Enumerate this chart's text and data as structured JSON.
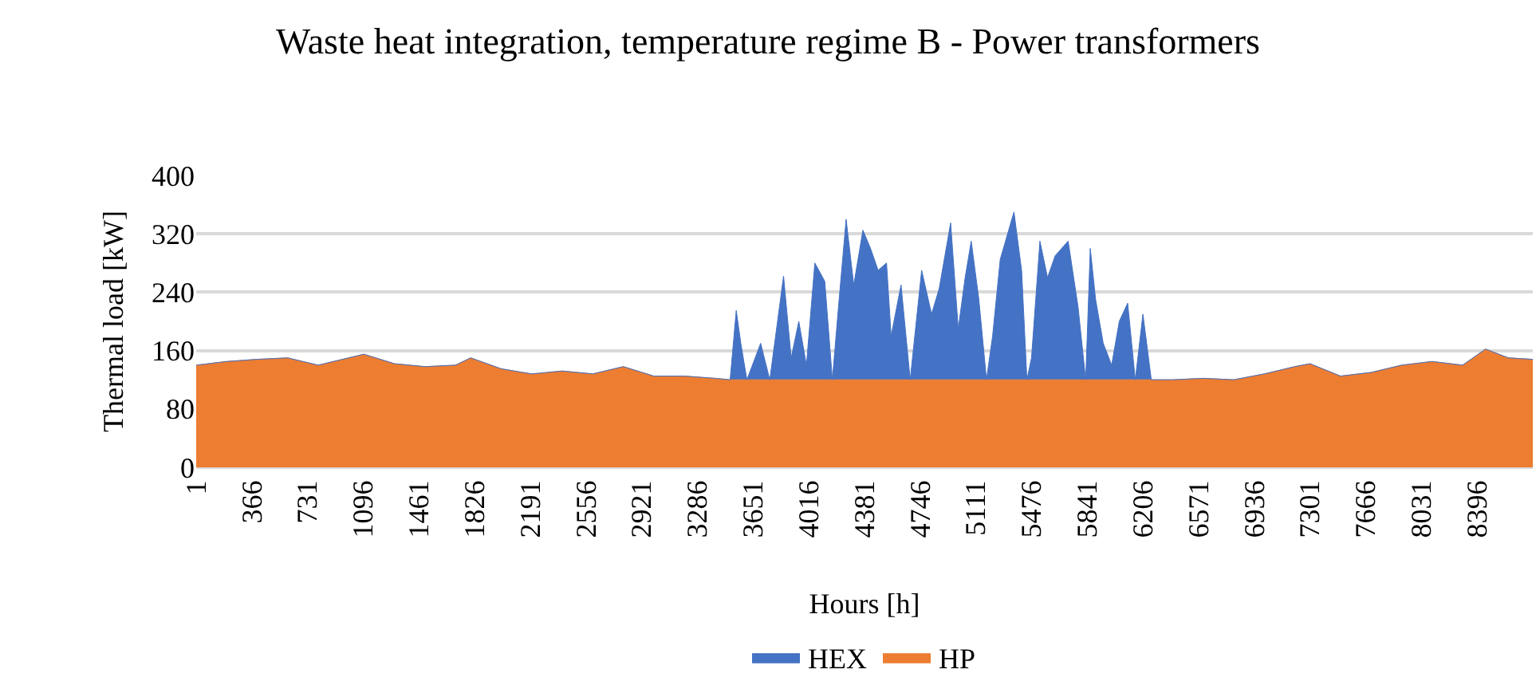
{
  "chart_data": {
    "type": "area",
    "title": "Waste heat integration, temperature regime B - Power transformers",
    "xlabel": "Hours [h]",
    "ylabel": "Thermal load [kW]",
    "x": [
      1,
      200,
      400,
      600,
      800,
      1000,
      1100,
      1300,
      1500,
      1700,
      1800,
      2000,
      2200,
      2400,
      2600,
      2800,
      3000,
      3200,
      3400,
      3500,
      3540,
      3570,
      3610,
      3700,
      3760,
      3850,
      3900,
      3950,
      4000,
      4055,
      4120,
      4170,
      4210,
      4260,
      4310,
      4370,
      4420,
      4470,
      4525,
      4555,
      4620,
      4680,
      4755,
      4820,
      4870,
      4945,
      4995,
      5040,
      5080,
      5130,
      5180,
      5220,
      5270,
      5360,
      5410,
      5445,
      5475,
      5530,
      5580,
      5630,
      5715,
      5780,
      5830,
      5860,
      5895,
      5945,
      6000,
      6050,
      6105,
      6155,
      6205,
      6260,
      6400,
      6600,
      6800,
      7000,
      7200,
      7300,
      7500,
      7700,
      7900,
      8100,
      8300,
      8450,
      8600,
      8760
    ],
    "series": [
      {
        "name": "HP",
        "color": "#ed7d31",
        "values": [
          140,
          145,
          148,
          150,
          140,
          150,
          155,
          142,
          138,
          140,
          150,
          135,
          128,
          132,
          128,
          138,
          125,
          125,
          122,
          120,
          120,
          120,
          120,
          120,
          120,
          120,
          120,
          120,
          120,
          120,
          120,
          120,
          120,
          120,
          120,
          120,
          120,
          120,
          120,
          120,
          120,
          120,
          120,
          120,
          120,
          120,
          120,
          120,
          120,
          120,
          120,
          120,
          120,
          120,
          120,
          120,
          120,
          120,
          120,
          120,
          120,
          120,
          120,
          120,
          120,
          120,
          120,
          120,
          120,
          120,
          120,
          120,
          120,
          122,
          120,
          128,
          138,
          142,
          125,
          130,
          140,
          145,
          140,
          162,
          150,
          148
        ]
      },
      {
        "name": "HEX",
        "color": "#4472c4",
        "values": [
          0,
          0,
          0,
          0,
          0,
          0,
          0,
          0,
          0,
          0,
          0,
          0,
          0,
          0,
          0,
          0,
          0,
          0,
          0,
          0,
          95,
          50,
          0,
          50,
          0,
          142,
          30,
          80,
          20,
          160,
          135,
          0,
          100,
          220,
          130,
          205,
          180,
          150,
          160,
          60,
          130,
          0,
          150,
          90,
          125,
          215,
          70,
          140,
          190,
          110,
          0,
          60,
          165,
          230,
          150,
          0,
          30,
          190,
          140,
          170,
          190,
          100,
          0,
          180,
          110,
          50,
          20,
          80,
          105,
          0,
          90,
          0,
          0,
          0,
          0,
          0,
          0,
          0,
          0,
          0,
          0,
          0,
          0,
          0,
          0,
          0
        ]
      }
    ],
    "stacked": true,
    "xlim": [
      1,
      8760
    ],
    "xticks": [
      1,
      366,
      731,
      1096,
      1461,
      1826,
      2191,
      2556,
      2921,
      3286,
      3651,
      4016,
      4381,
      4746,
      5111,
      5476,
      5841,
      6206,
      6571,
      6936,
      7301,
      7666,
      8031,
      8396
    ],
    "ylim": [
      0,
      400
    ],
    "yticks": [
      0,
      80,
      160,
      240,
      320,
      400
    ],
    "grid": "y",
    "legend": "bottom"
  }
}
